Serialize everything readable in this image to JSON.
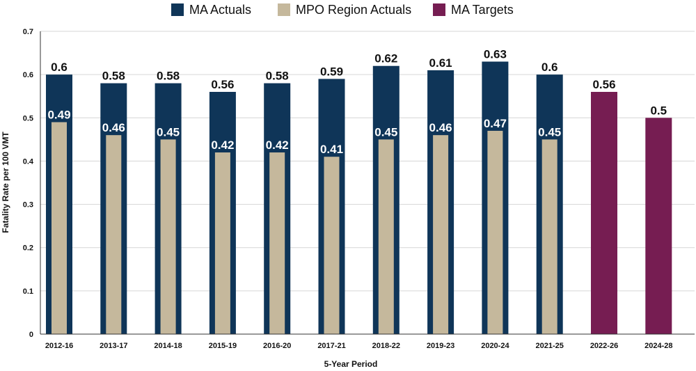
{
  "colors": {
    "ma_actuals": "#0f3558",
    "mpo_actuals": "#c5b89c",
    "ma_targets": "#761d52",
    "grid": "#d6d6d6",
    "axis": "#333333"
  },
  "chart_data": {
    "type": "bar",
    "title": "",
    "xlabel": "5-Year Period",
    "ylabel": "Fatality Rate per 100 VMT",
    "ylim": [
      0,
      0.7
    ],
    "yticks": [
      "0",
      "0.1",
      "0.2",
      "0.3",
      "0.4",
      "0.5",
      "0.6",
      "0.7"
    ],
    "grid": true,
    "legend_position": "top-center",
    "categories": [
      "2012-16",
      "2013-17",
      "2014-18",
      "2015-19",
      "2016-20",
      "2017-21",
      "2018-22",
      "2019-23",
      "2020-24",
      "2021-25",
      "2022-26",
      "2024-28"
    ],
    "series": [
      {
        "name": "MA Actuals",
        "values": [
          0.6,
          0.58,
          0.58,
          0.56,
          0.58,
          0.59,
          0.62,
          0.61,
          0.63,
          0.6,
          null,
          null
        ],
        "labels": [
          "0.6",
          "0.58",
          "0.58",
          "0.56",
          "0.58",
          "0.59",
          "0.62",
          "0.61",
          "0.63",
          "0.6",
          "",
          ""
        ]
      },
      {
        "name": "MPO Region Actuals",
        "values": [
          0.49,
          0.46,
          0.45,
          0.42,
          0.42,
          0.41,
          0.45,
          0.46,
          0.47,
          0.45,
          null,
          null
        ],
        "labels": [
          "0.49",
          "0.46",
          "0.45",
          "0.42",
          "0.42",
          "0.41",
          "0.45",
          "0.46",
          "0.47",
          "0.45",
          "",
          ""
        ]
      },
      {
        "name": "MA Targets",
        "values": [
          null,
          null,
          null,
          null,
          null,
          null,
          null,
          null,
          null,
          null,
          0.56,
          0.5
        ],
        "labels": [
          "",
          "",
          "",
          "",
          "",
          "",
          "",
          "",
          "",
          "",
          "0.56",
          "0.5"
        ]
      }
    ]
  }
}
